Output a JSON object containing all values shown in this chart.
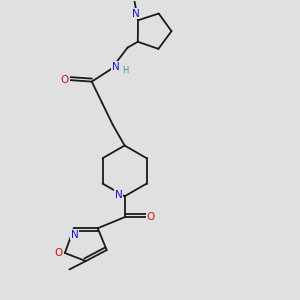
{
  "background_color": "#e0e0e0",
  "figsize": [
    3.0,
    3.0
  ],
  "dpi": 100,
  "colors": {
    "C": "#1a1a1a",
    "N": "#1414cc",
    "O": "#cc1414",
    "H": "#3a9a9a",
    "bond": "#1a1a1a"
  },
  "bond_lw": 1.3,
  "font_size_atom": 7.5,
  "font_size_small": 6.0,
  "xlim": [
    0,
    10
  ],
  "ylim": [
    0,
    10
  ]
}
